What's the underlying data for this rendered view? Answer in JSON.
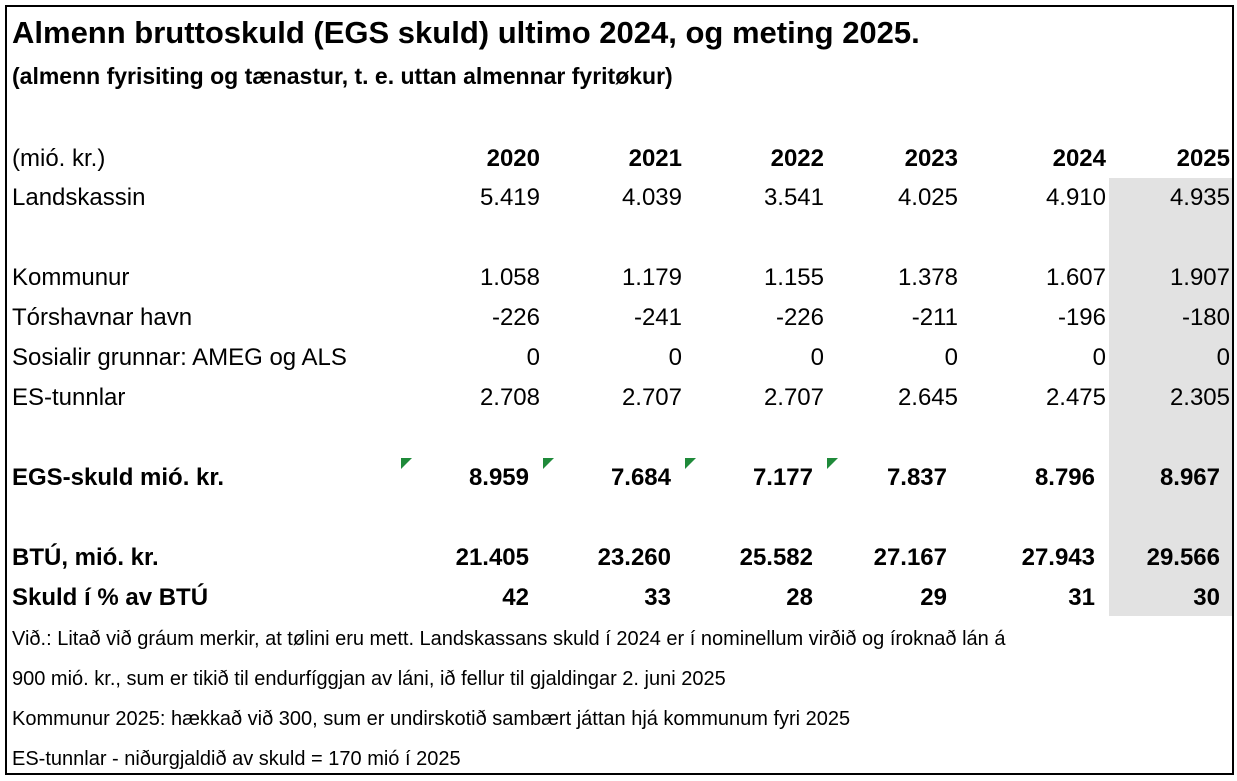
{
  "title": "Almenn bruttoskuld (EGS skuld) ultimo 2024, og meting 2025.",
  "subtitle": "(almenn fyrisiting og tænastur, t. e. uttan almennar fyritøkur)",
  "table": {
    "unit_label": "(mió. kr.)",
    "years": [
      "2020",
      "2021",
      "2022",
      "2023",
      "2024",
      "2025"
    ],
    "rows": [
      {
        "label": "Landskassin",
        "values": [
          "5.419",
          "4.039",
          "3.541",
          "4.025",
          "4.910",
          "4.935"
        ]
      },
      {
        "label": "Kommunur",
        "values": [
          "1.058",
          "1.179",
          "1.155",
          "1.378",
          "1.607",
          "1.907"
        ]
      },
      {
        "label": "Tórshavnar havn",
        "values": [
          "-226",
          "-241",
          "-226",
          "-211",
          "-196",
          "-180"
        ]
      },
      {
        "label": "Sosialir grunnar: AMEG og ALS",
        "values": [
          "0",
          "0",
          "0",
          "0",
          "0",
          "0"
        ]
      },
      {
        "label": "ES-tunnlar",
        "values": [
          "2.708",
          "2.707",
          "2.707",
          "2.645",
          "2.475",
          "2.305"
        ]
      },
      {
        "label": "EGS-skuld mió. kr.",
        "values": [
          "8.959",
          "7.684",
          "7.177",
          "7.837",
          "8.796",
          "8.967"
        ]
      },
      {
        "label": "BTÚ, mió. kr.",
        "values": [
          "21.405",
          "23.260",
          "25.582",
          "27.167",
          "27.943",
          "29.566"
        ]
      },
      {
        "label": "Skuld í % av BTÚ",
        "values": [
          "42",
          "33",
          "28",
          "29",
          "31",
          "30"
        ]
      }
    ]
  },
  "notes": [
    "Við.: Litað við gráum merkir, at tølini eru mett. Landskassans skuld í 2024 er í nominellum virðið og íroknað lán á",
    "900 mió. kr., sum er tikið til endurfíggjan av láni, ið fellur til gjaldingar 2. juni 2025",
    "Kommunur 2025: hækkað við 300, sum er undirskotið sambært játtan hjá kommunum fyri 2025",
    "ES-tunnlar - niðurgjaldið av skuld = 170 mió í 2025"
  ],
  "colors": {
    "estimate_shading": "#e2e2e2",
    "error_marker": "#1f8a3a"
  }
}
